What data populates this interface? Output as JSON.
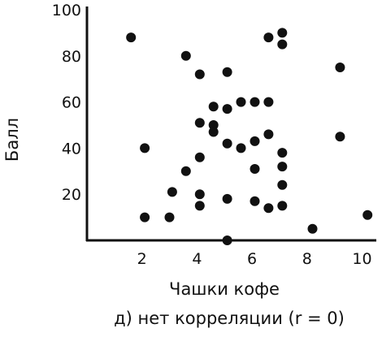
{
  "chart_data": {
    "type": "scatter",
    "title": "",
    "caption": "д) нет корреляции (r = 0)",
    "xlabel": "Чашки кофе",
    "ylabel": "Балл",
    "xlim": [
      0,
      10.4
    ],
    "ylim": [
      0,
      100
    ],
    "xticks": [
      "2",
      "4",
      "6",
      "8",
      "10"
    ],
    "yticks": [
      "20",
      "40",
      "60",
      "80",
      "100"
    ],
    "grid": false,
    "legend": "none",
    "point_color": "#111111",
    "points": [
      {
        "x": 1.6,
        "y": 88
      },
      {
        "x": 2.1,
        "y": 40
      },
      {
        "x": 2.1,
        "y": 10
      },
      {
        "x": 3.0,
        "y": 10
      },
      {
        "x": 3.1,
        "y": 21
      },
      {
        "x": 3.6,
        "y": 30
      },
      {
        "x": 3.6,
        "y": 80
      },
      {
        "x": 4.1,
        "y": 72
      },
      {
        "x": 4.1,
        "y": 51
      },
      {
        "x": 4.1,
        "y": 36
      },
      {
        "x": 4.1,
        "y": 20
      },
      {
        "x": 4.1,
        "y": 15
      },
      {
        "x": 4.6,
        "y": 58
      },
      {
        "x": 4.6,
        "y": 50
      },
      {
        "x": 4.6,
        "y": 47
      },
      {
        "x": 5.1,
        "y": 73
      },
      {
        "x": 5.1,
        "y": 57
      },
      {
        "x": 5.1,
        "y": 42
      },
      {
        "x": 5.1,
        "y": 18
      },
      {
        "x": 5.1,
        "y": 0
      },
      {
        "x": 5.6,
        "y": 60
      },
      {
        "x": 5.6,
        "y": 40
      },
      {
        "x": 6.1,
        "y": 60
      },
      {
        "x": 6.1,
        "y": 43
      },
      {
        "x": 6.1,
        "y": 31
      },
      {
        "x": 6.1,
        "y": 17
      },
      {
        "x": 6.6,
        "y": 88
      },
      {
        "x": 6.6,
        "y": 60
      },
      {
        "x": 6.6,
        "y": 46
      },
      {
        "x": 6.6,
        "y": 14
      },
      {
        "x": 7.1,
        "y": 90
      },
      {
        "x": 7.1,
        "y": 85
      },
      {
        "x": 7.1,
        "y": 38
      },
      {
        "x": 7.1,
        "y": 32
      },
      {
        "x": 7.1,
        "y": 24
      },
      {
        "x": 7.1,
        "y": 15
      },
      {
        "x": 8.2,
        "y": 5
      },
      {
        "x": 9.2,
        "y": 75
      },
      {
        "x": 9.2,
        "y": 45
      },
      {
        "x": 10.2,
        "y": 11
      }
    ]
  }
}
